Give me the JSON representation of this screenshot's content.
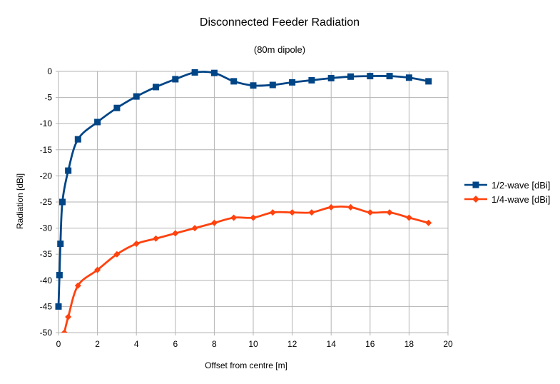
{
  "chart_data": {
    "type": "line",
    "title": "Disconnected Feeder Radiation",
    "subtitle": "(80m dipole)",
    "xlabel": "Offset from centre [m]",
    "ylabel": "Radiation [dBi]",
    "xlim": [
      0,
      20
    ],
    "ylim": [
      -50,
      0
    ],
    "xticks": [
      0,
      2,
      4,
      6,
      8,
      10,
      12,
      14,
      16,
      18,
      20
    ],
    "yticks": [
      0,
      -5,
      -10,
      -15,
      -20,
      -25,
      -30,
      -35,
      -40,
      -45,
      -50
    ],
    "grid": true,
    "legend_position": "right",
    "series": [
      {
        "name": "1/2-wave [dBi]",
        "color": "#004586",
        "marker": "square",
        "points": [
          [
            0,
            -45
          ],
          [
            0.05,
            -39
          ],
          [
            0.1,
            -33
          ],
          [
            0.2,
            -25
          ],
          [
            0.5,
            -19
          ],
          [
            1,
            -13
          ],
          [
            2,
            -9.7
          ],
          [
            3,
            -7
          ],
          [
            4,
            -4.8
          ],
          [
            5,
            -3
          ],
          [
            6,
            -1.5
          ],
          [
            7,
            -0.2
          ],
          [
            8,
            -0.3
          ],
          [
            9,
            -1.9
          ],
          [
            10,
            -2.7
          ],
          [
            11,
            -2.6
          ],
          [
            12,
            -2.1
          ],
          [
            13,
            -1.7
          ],
          [
            14,
            -1.3
          ],
          [
            15,
            -1.0
          ],
          [
            16,
            -0.9
          ],
          [
            17,
            -0.9
          ],
          [
            18,
            -1.2
          ],
          [
            19,
            -1.9
          ]
        ]
      },
      {
        "name": "1/4-wave [dBi]",
        "color": "#ff420e",
        "marker": "diamond",
        "points": [
          [
            0.3,
            -50
          ],
          [
            0.5,
            -47
          ],
          [
            1,
            -41
          ],
          [
            2,
            -38
          ],
          [
            3,
            -35
          ],
          [
            4,
            -33
          ],
          [
            5,
            -32
          ],
          [
            6,
            -31
          ],
          [
            7,
            -30
          ],
          [
            8,
            -29
          ],
          [
            9,
            -28
          ],
          [
            10,
            -28
          ],
          [
            11,
            -27
          ],
          [
            12,
            -27
          ],
          [
            13,
            -27
          ],
          [
            14,
            -26
          ],
          [
            15,
            -26
          ],
          [
            16,
            -27
          ],
          [
            17,
            -27
          ],
          [
            18,
            -28
          ],
          [
            19,
            -29
          ]
        ]
      }
    ]
  }
}
